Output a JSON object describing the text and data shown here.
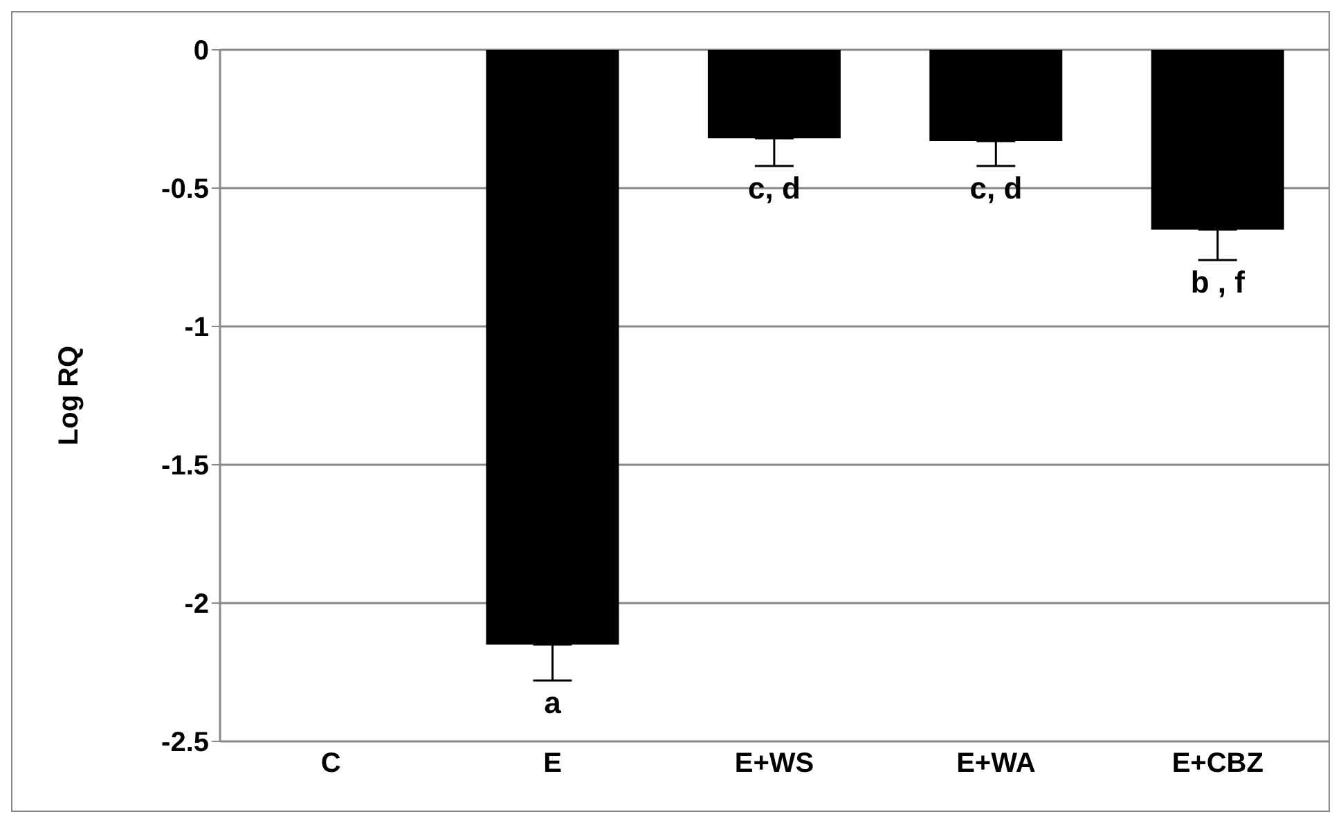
{
  "chart_data": {
    "type": "bar",
    "ylabel": "Log RQ",
    "categories": [
      "C",
      "E",
      "E+WS",
      "E+WA",
      "E+CBZ"
    ],
    "values": [
      0,
      -2.15,
      -0.32,
      -0.33,
      -0.65
    ],
    "errors": [
      [
        0,
        0
      ],
      [
        -2.28,
        -2.15
      ],
      [
        -0.42,
        -0.32
      ],
      [
        -0.42,
        -0.33
      ],
      [
        -0.76,
        -0.65
      ]
    ],
    "color": "#000000",
    "ylim": [
      -2.5,
      0
    ],
    "yticks": [
      -2.5,
      -2,
      -1.5,
      -1,
      -0.5,
      0
    ],
    "grid": "y",
    "annotations": [
      {
        "text": "a",
        "x": "E",
        "y": -2.28
      },
      {
        "text": "c, d",
        "x": "E+WS",
        "y": -0.42
      },
      {
        "text": "c, d",
        "x": "E+WA",
        "y": -0.42
      },
      {
        "text": "b , f",
        "x": "E+CBZ",
        "y": -0.76
      }
    ]
  }
}
